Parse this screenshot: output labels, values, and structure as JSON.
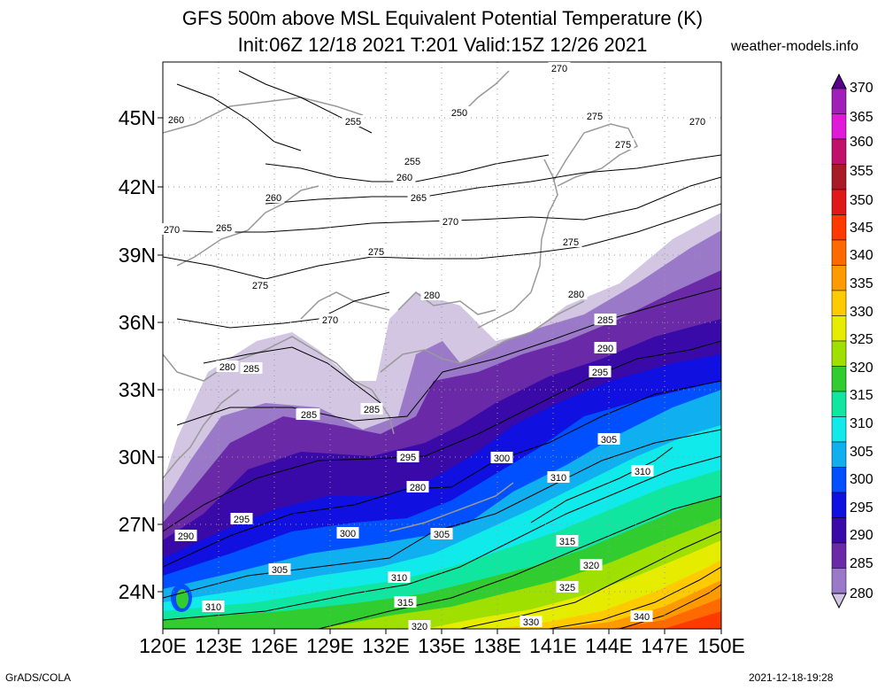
{
  "header": {
    "title_line1": "GFS 500m above MSL Equivalent Potential Temperature (K)",
    "title_line2": "Init:06Z 12/18 2021 T:201 Valid:15Z 12/26 2021",
    "site": "weather-models.info"
  },
  "axes": {
    "lat_labels": [
      "45N",
      "42N",
      "39N",
      "36N",
      "33N",
      "30N",
      "27N",
      "24N"
    ],
    "lon_labels": [
      "120E",
      "123E",
      "126E",
      "129E",
      "132E",
      "135E",
      "138E",
      "141E",
      "144E",
      "147E",
      "150E"
    ]
  },
  "colorbar": {
    "levels": [
      "370",
      "365",
      "360",
      "355",
      "350",
      "345",
      "340",
      "335",
      "330",
      "325",
      "320",
      "315",
      "310",
      "305",
      "300",
      "295",
      "290",
      "285",
      "280"
    ],
    "colors": [
      "#5a008f",
      "#a01fb8",
      "#e01ad8",
      "#c0106a",
      "#a81a28",
      "#e01818",
      "#ff3a00",
      "#ff6a00",
      "#ff9a00",
      "#ffca00",
      "#e6ec00",
      "#a0e000",
      "#30cc30",
      "#10e6a0",
      "#10eaea",
      "#10b0f0",
      "#0050ff",
      "#1010e0",
      "#3a0aa8",
      "#6a2aa8",
      "#9a7ac8",
      "#d2c6e2"
    ]
  },
  "contour_labels": [
    "270",
    "260",
    "255",
    "250",
    "275",
    "270",
    "255",
    "260",
    "260",
    "265",
    "270",
    "270",
    "265",
    "275",
    "275",
    "275",
    "275",
    "270",
    "280",
    "280",
    "280",
    "285",
    "285",
    "290",
    "295",
    "280",
    "285",
    "285",
    "290",
    "295",
    "300",
    "300",
    "305",
    "310",
    "310",
    "290",
    "295",
    "300",
    "305",
    "305",
    "310",
    "315",
    "320",
    "325",
    "330",
    "340",
    "310",
    "315",
    "320"
  ],
  "footer": {
    "left": "GrADS/COLA",
    "right": "2021-12-18-19:28"
  }
}
